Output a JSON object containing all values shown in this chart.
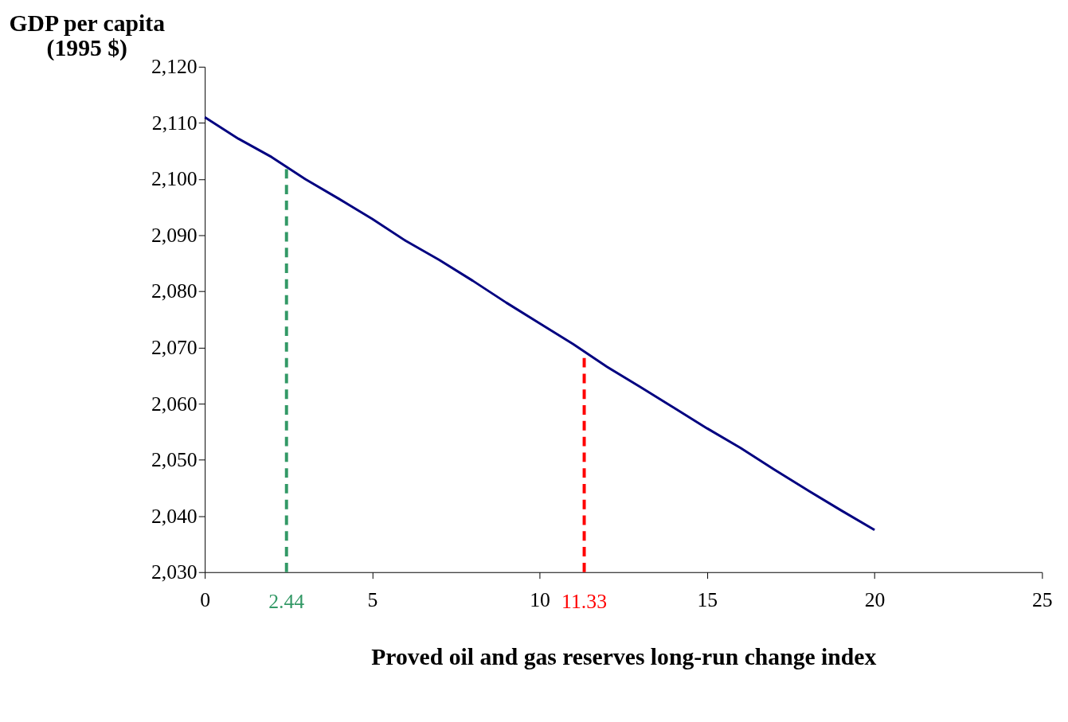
{
  "chart_data": {
    "type": "line",
    "xlabel": "Proved oil and gas reserves long-run change index",
    "ylabel": "GDP per capita\n(1995 $)",
    "x": [
      0,
      1,
      2,
      3,
      4,
      5,
      6,
      7,
      8,
      9,
      10,
      11,
      12,
      13,
      14,
      15,
      16,
      17,
      18,
      19,
      20
    ],
    "series": [
      {
        "color": "#000080",
        "values": [
          2111,
          2107.2,
          2103.9,
          2100.0,
          2096.5,
          2092.9,
          2089.0,
          2085.6,
          2081.9,
          2078.0,
          2074.3,
          2070.6,
          2066.6,
          2063.0,
          2059.3,
          2055.6,
          2052.1,
          2048.3,
          2044.6,
          2041.0,
          2037.5
        ]
      }
    ],
    "xlim": [
      0,
      25
    ],
    "xticks": [
      0,
      5,
      10,
      15,
      20,
      25
    ],
    "ylim": [
      2030,
      2120
    ],
    "yticks": [
      {
        "value": 2030,
        "label": "2,030"
      },
      {
        "value": 2040,
        "label": "2,040"
      },
      {
        "value": 2050,
        "label": "2,050"
      },
      {
        "value": 2060,
        "label": "2,060"
      },
      {
        "value": 2070,
        "label": "2,070"
      },
      {
        "value": 2080,
        "label": "2,080"
      },
      {
        "value": 2090,
        "label": "2,090"
      },
      {
        "value": 2100,
        "label": "2,100"
      },
      {
        "value": 2110,
        "label": "2,110"
      },
      {
        "value": 2120,
        "label": "2,120"
      }
    ],
    "ref_lines": [
      {
        "axis": "x",
        "value": 2.44,
        "label": "2.44",
        "color": "#339966",
        "line_style": "dashed"
      },
      {
        "axis": "x",
        "value": 11.33,
        "label": "11.33",
        "color": "#ff0000",
        "line_style": "dashed"
      }
    ],
    "grid": false,
    "marker": "none",
    "line_style": "solid"
  }
}
